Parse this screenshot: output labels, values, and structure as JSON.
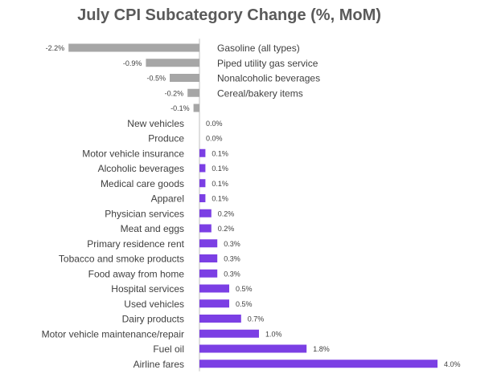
{
  "chart_data": {
    "type": "bar",
    "orientation": "horizontal",
    "title": "July CPI Subcategory Change (%, MoM)",
    "xlabel": "",
    "ylabel": "",
    "grid": false,
    "legend": "none",
    "colors": {
      "negative": "#a6a6a6",
      "positive": "#7b3fe4",
      "axis": "#bfbfbf",
      "label": "#404040"
    },
    "categories": [
      "Gasoline (all types)",
      "Piped utility gas service",
      "Nonalcoholic beverages",
      "Cereal/bakery items",
      "",
      "New vehicles",
      "Produce",
      "Motor vehicle insurance",
      "Alcoholic beverages",
      "Medical care goods",
      "Apparel",
      "Physician services",
      "Meat and eggs",
      "Primary residence rent",
      "Tobacco and smoke products",
      "Food away from home",
      "Hospital services",
      "Used vehicles",
      "Dairy products",
      "Motor vehicle maintenance/repair",
      "Fuel oil",
      "Airline fares"
    ],
    "values": [
      -2.2,
      -0.9,
      -0.5,
      -0.2,
      -0.1,
      0.0,
      0.0,
      0.1,
      0.1,
      0.1,
      0.1,
      0.2,
      0.2,
      0.3,
      0.3,
      0.3,
      0.5,
      0.5,
      0.7,
      1.0,
      1.8,
      4.0
    ],
    "value_labels": [
      "-2.2%",
      "-0.9%",
      "-0.5%",
      "-0.2%",
      "-0.1%",
      "0.0%",
      "0.0%",
      "0.1%",
      "0.1%",
      "0.1%",
      "0.1%",
      "0.2%",
      "0.2%",
      "0.3%",
      "0.3%",
      "0.3%",
      "0.5%",
      "0.5%",
      "0.7%",
      "1.0%",
      "1.8%",
      "4.0%"
    ],
    "xlim": [
      -2.2,
      4.0
    ]
  }
}
